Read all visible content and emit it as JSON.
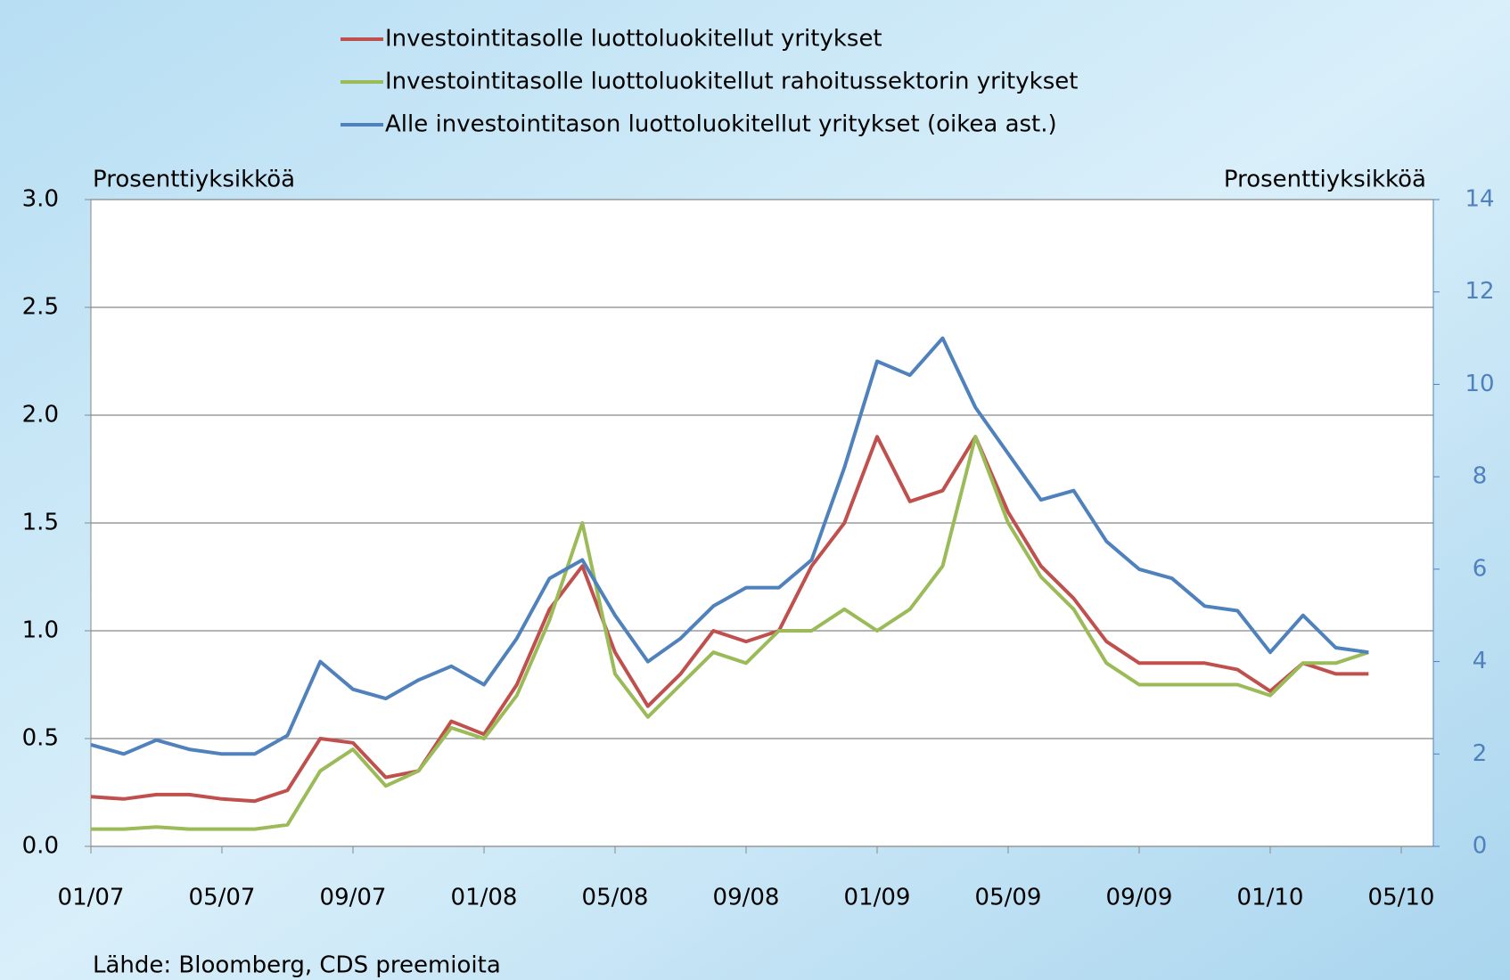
{
  "chart_data": {
    "type": "line",
    "ylabel": "Prosenttiyksikköä",
    "y2label": "Prosenttiyksikköä",
    "source": "Lähde: Bloomberg, CDS preemioita",
    "x": [
      "01/07",
      null,
      null,
      null,
      "05/07",
      null,
      null,
      null,
      "09/07",
      null,
      null,
      null,
      "01/08",
      null,
      null,
      null,
      "05/08",
      null,
      null,
      null,
      "09/08",
      null,
      null,
      null,
      "01/09",
      null,
      null,
      null,
      "05/09",
      null,
      null,
      null,
      "09/09",
      null,
      null,
      null,
      "01/10",
      null,
      null,
      null,
      "05/10"
    ],
    "series": [
      {
        "name": "Investointitasolle luottoluokitellut yritykset",
        "color": "#c0504d",
        "values": [
          0.23,
          0.22,
          0.24,
          0.24,
          0.22,
          0.21,
          0.26,
          0.5,
          0.48,
          0.32,
          0.35,
          0.58,
          0.52,
          0.75,
          1.1,
          1.3,
          0.9,
          0.65,
          0.8,
          1.0,
          0.95,
          1.0,
          1.3,
          1.5,
          1.9,
          1.6,
          1.65,
          1.9,
          1.55,
          1.3,
          1.15,
          0.95,
          0.85,
          0.85,
          0.85,
          0.82,
          0.72,
          0.85,
          0.8,
          0.8,
          null
        ]
      },
      {
        "name": "Investointitasolle luottoluokitellut rahoitussektorin yritykset",
        "color": "#9bbb59",
        "values": [
          0.08,
          0.08,
          0.09,
          0.08,
          0.08,
          0.08,
          0.1,
          0.35,
          0.45,
          0.28,
          0.35,
          0.55,
          0.5,
          0.7,
          1.05,
          1.5,
          0.8,
          0.6,
          0.75,
          0.9,
          0.85,
          1.0,
          1.0,
          1.1,
          1.0,
          1.1,
          1.3,
          1.9,
          1.5,
          1.25,
          1.1,
          0.85,
          0.75,
          0.75,
          0.75,
          0.75,
          0.7,
          0.85,
          0.85,
          0.9,
          null
        ]
      },
      {
        "name": "Alle investointitason luottoluokitellut yritykset (oikea ast.)",
        "color": "#4f81bd",
        "axis": "y2",
        "values": [
          2.2,
          2.0,
          2.3,
          2.1,
          2.0,
          2.0,
          2.4,
          4.0,
          3.4,
          3.2,
          3.6,
          3.9,
          3.5,
          4.5,
          5.8,
          6.2,
          5.0,
          4.0,
          4.5,
          5.2,
          5.6,
          5.6,
          6.2,
          8.2,
          10.5,
          10.2,
          11.0,
          9.5,
          8.5,
          7.5,
          7.7,
          6.6,
          6.0,
          5.8,
          5.2,
          5.1,
          4.2,
          5.0,
          4.3,
          4.2,
          null
        ]
      }
    ],
    "ylim": [
      0,
      3
    ],
    "yticks": [
      {
        "value": 0,
        "label": "0.0"
      },
      {
        "value": 0.5,
        "label": "0.5"
      },
      {
        "value": 1,
        "label": "1.0"
      },
      {
        "value": 1.5,
        "label": "1.5"
      },
      {
        "value": 2,
        "label": "2.0"
      },
      {
        "value": 2.5,
        "label": "2.5"
      },
      {
        "value": 3,
        "label": "3.0"
      }
    ],
    "y2lim": [
      0,
      14
    ],
    "y2ticks": [
      0,
      2,
      4,
      6,
      8,
      10,
      12,
      14
    ],
    "grid": true
  }
}
